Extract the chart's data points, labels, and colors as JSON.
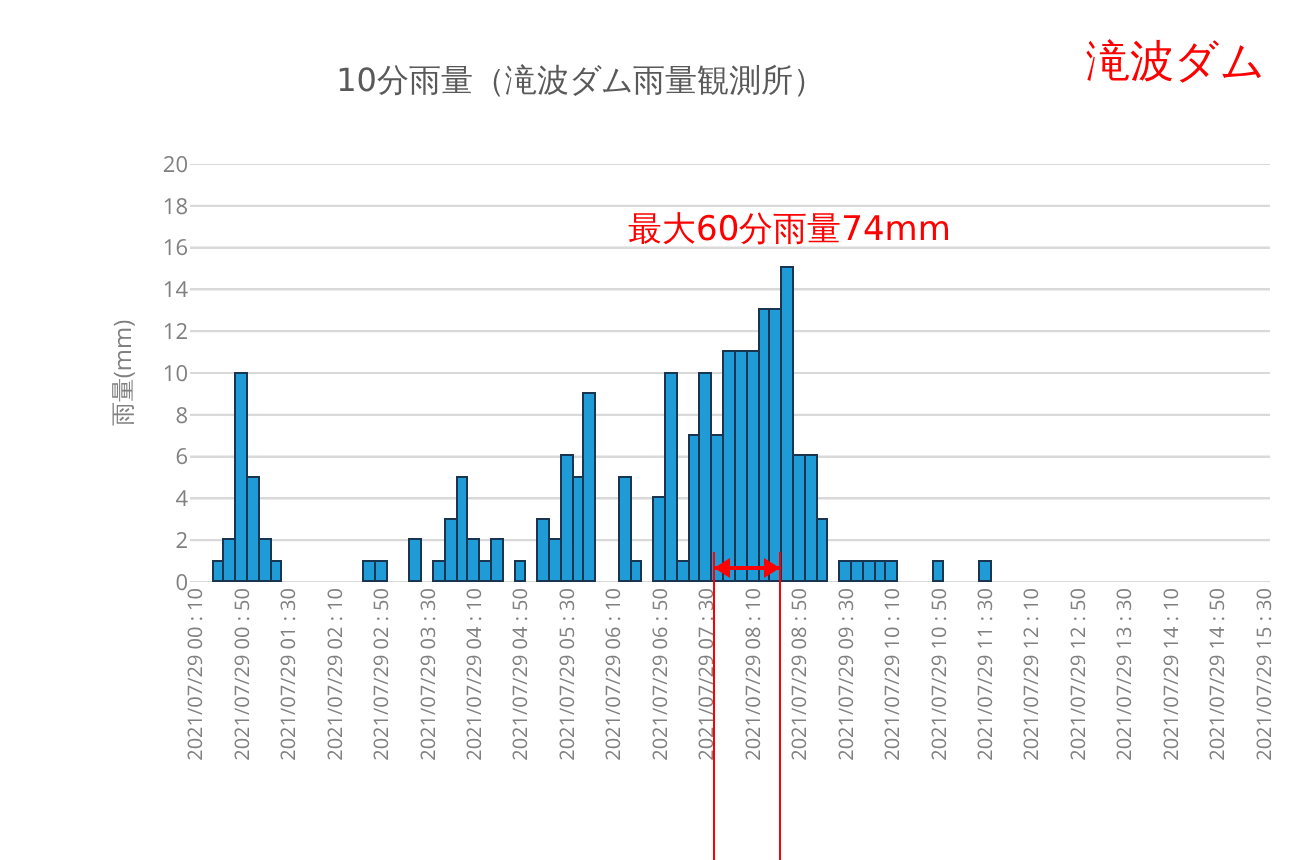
{
  "chart_data": {
    "type": "bar",
    "title": "10分雨量（滝波ダム雨量観測所）",
    "ylabel": "雨量(mm)",
    "categories": [
      "2021/07/29 00 : 10",
      null,
      null,
      null,
      "2021/07/29 00 : 50",
      null,
      null,
      null,
      "2021/07/29 01 : 30",
      null,
      null,
      null,
      "2021/07/29 02 : 10",
      null,
      null,
      null,
      "2021/07/29 02 : 50",
      null,
      null,
      null,
      "2021/07/29 03 : 30",
      null,
      null,
      null,
      "2021/07/29 04 : 10",
      null,
      null,
      null,
      "2021/07/29 04 : 50",
      null,
      null,
      null,
      "2021/07/29 05 : 30",
      null,
      null,
      null,
      "2021/07/29 06 : 10",
      null,
      null,
      null,
      "2021/07/29 06 : 50",
      null,
      null,
      null,
      "2021/07/29 07 : 30",
      null,
      null,
      null,
      "2021/07/29 08 : 10",
      null,
      null,
      null,
      "2021/07/29 08 : 50",
      null,
      null,
      null,
      "2021/07/29 09 : 30",
      null,
      null,
      null,
      "2021/07/29 10 : 10",
      null,
      null,
      null,
      "2021/07/29 10 : 50",
      null,
      null,
      null,
      "2021/07/29 11 : 30",
      null,
      null,
      null,
      "2021/07/29 12 : 10",
      null,
      null,
      null,
      "2021/07/29 12 : 50",
      null,
      null,
      null,
      "2021/07/29 13 : 30",
      null,
      null,
      null,
      "2021/07/29 14 : 10",
      null,
      null,
      null,
      "2021/07/29 14 : 50",
      null,
      null,
      null,
      "2021/07/29 15 : 30"
    ],
    "values": [
      0,
      0,
      1,
      2,
      10,
      5,
      2,
      1,
      0,
      0,
      0,
      0,
      0,
      0,
      0,
      1,
      1,
      0,
      0,
      2,
      0,
      1,
      3,
      5,
      2,
      1,
      2,
      0,
      1,
      0,
      3,
      2,
      6,
      5,
      9,
      0,
      0,
      5,
      1,
      0,
      4,
      10,
      1,
      7,
      10,
      7,
      11,
      11,
      11,
      13,
      13,
      15,
      6,
      6,
      3,
      0,
      1,
      1,
      1,
      1,
      1,
      0,
      0,
      0,
      1,
      0,
      0,
      0,
      1,
      0,
      0,
      0,
      0,
      0,
      0,
      0,
      0,
      0,
      0,
      0,
      0,
      0,
      0,
      0,
      0,
      0,
      0,
      0,
      0,
      0,
      0,
      0,
      0
    ],
    "color": "#1f9bd7",
    "ylim": [
      0,
      20
    ],
    "yticks": [
      0,
      2,
      4,
      6,
      8,
      10,
      12,
      14,
      16,
      18,
      20
    ],
    "grid": "y",
    "annotations": [
      "最大60分雨量74mm",
      "滝波ダム"
    ]
  }
}
